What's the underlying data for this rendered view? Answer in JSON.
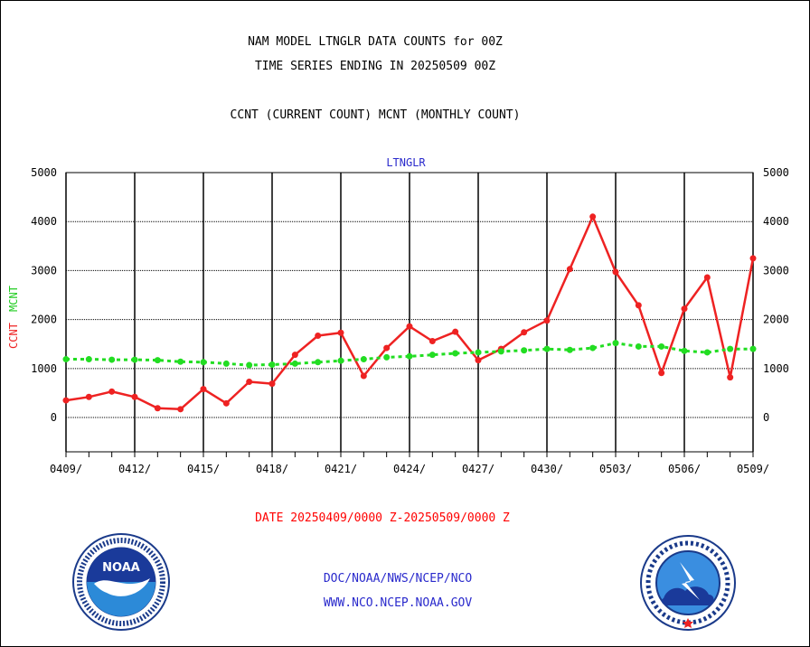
{
  "header": {
    "line1": "NAM MODEL LTNGLR DATA COUNTS for 00Z",
    "line2": "TIME SERIES ENDING IN 20250509 00Z",
    "subtitle": "CCNT (CURRENT COUNT) MCNT (MONTHLY COUNT)"
  },
  "date_range": "DATE 20250409/0000 Z-20250509/0000 Z",
  "footer": {
    "line1": "DOC/NOAA/NWS/NCEP/NCO",
    "line2": "WWW.NCO.NCEP.NOAA.GOV"
  },
  "logos": {
    "left": "NOAA",
    "right": "NATIONAL WEATHER SERVICE"
  },
  "colors": {
    "ccnt": "#ee2222",
    "mcnt": "#22dd22",
    "label": "#2a2acc",
    "grid": "#000000"
  },
  "chart_data": {
    "type": "line",
    "title": "LTNGLR",
    "ylabel_ccnt": "CCNT",
    "ylabel_mcnt": "MCNT",
    "ylim": [
      -700,
      5000
    ],
    "yticks": [
      0,
      1000,
      2000,
      3000,
      4000,
      5000
    ],
    "xticks": [
      "0409/",
      "0412/",
      "0415/",
      "0418/",
      "0421/",
      "0424/",
      "0427/",
      "0430/",
      "0503/",
      "0506/",
      "0509/"
    ],
    "dates": [
      "0409",
      "0410",
      "0411",
      "0412",
      "0413",
      "0414",
      "0415",
      "0416",
      "0417",
      "0418",
      "0419",
      "0420",
      "0421",
      "0422",
      "0423",
      "0424",
      "0425",
      "0426",
      "0427",
      "0428",
      "0429",
      "0430",
      "0501",
      "0502",
      "0503",
      "0504",
      "0505",
      "0506",
      "0507",
      "0508",
      "0509"
    ],
    "series": [
      {
        "name": "CCNT",
        "color": "#ee2222",
        "values": [
          350,
          420,
          530,
          420,
          190,
          170,
          580,
          290,
          730,
          690,
          1280,
          1670,
          1730,
          850,
          1420,
          1860,
          1560,
          1750,
          1170,
          1400,
          1740,
          1980,
          3030,
          4100,
          2970,
          2290,
          910,
          2220,
          2860,
          820,
          3250
        ]
      },
      {
        "name": "MCNT",
        "color": "#22dd22",
        "values": [
          1190,
          1190,
          1180,
          1180,
          1170,
          1140,
          1130,
          1100,
          1070,
          1080,
          1100,
          1130,
          1160,
          1190,
          1230,
          1250,
          1280,
          1310,
          1330,
          1350,
          1370,
          1400,
          1380,
          1420,
          1520,
          1450,
          1450,
          1360,
          1330,
          1400,
          1400
        ]
      }
    ]
  }
}
